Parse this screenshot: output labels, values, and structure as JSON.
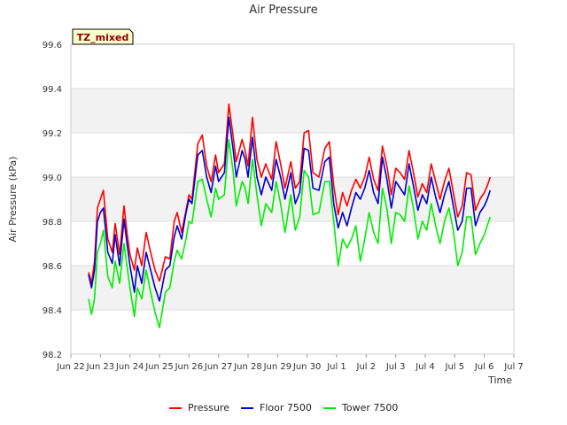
{
  "chart_data": {
    "type": "line",
    "title": "Air Pressure",
    "xlabel": "Time",
    "ylabel": "Air Pressure (kPa)",
    "badge": "TZ_mixed",
    "ylim": [
      98.2,
      99.6
    ],
    "yticks": [
      98.2,
      98.4,
      98.6,
      98.8,
      99.0,
      99.2,
      99.4,
      99.6
    ],
    "xlim_days": [
      0,
      15
    ],
    "xticks": [
      "Jun 22",
      "Jun 23",
      "Jun 24",
      "Jun 25",
      "Jun 26",
      "Jun 27",
      "Jun 28",
      "Jun 29",
      "Jun 30",
      "Jul 1",
      "Jul 2",
      "Jul 3",
      "Jul 4",
      "Jul 5",
      "Jul 6",
      "Jul 7"
    ],
    "x_start": "Jun 22",
    "grid": true,
    "legend_position": "bottom",
    "colors": {
      "Pressure": "#ff0000",
      "Floor 7500": "#0000cc",
      "Tower 7500": "#00ee00",
      "band": "#f2f2f2",
      "gridline": "#dddddd"
    },
    "series": [
      {
        "name": "Pressure",
        "x": [
          0.6,
          0.7,
          0.8,
          0.9,
          1.0,
          1.1,
          1.25,
          1.4,
          1.5,
          1.65,
          1.8,
          1.9,
          2.0,
          2.15,
          2.25,
          2.4,
          2.55,
          2.7,
          2.85,
          3.0,
          3.2,
          3.35,
          3.5,
          3.6,
          3.75,
          3.9,
          4.0,
          4.1,
          4.3,
          4.45,
          4.6,
          4.75,
          4.9,
          5.0,
          5.2,
          5.35,
          5.5,
          5.6,
          5.8,
          5.9,
          6.0,
          6.15,
          6.3,
          6.45,
          6.6,
          6.8,
          6.95,
          7.1,
          7.25,
          7.45,
          7.6,
          7.75,
          7.9,
          8.05,
          8.2,
          8.4,
          8.6,
          8.75,
          8.9,
          9.05,
          9.2,
          9.35,
          9.5,
          9.65,
          9.8,
          9.95,
          10.1,
          10.25,
          10.4,
          10.55,
          10.7,
          10.85,
          11.0,
          11.15,
          11.3,
          11.45,
          11.6,
          11.75,
          11.9,
          12.05,
          12.2,
          12.35,
          12.5,
          12.65,
          12.8,
          12.95,
          13.1,
          13.25,
          13.4,
          13.55,
          13.7,
          13.85,
          14.0,
          14.1,
          14.2
        ],
        "y": [
          98.57,
          98.52,
          98.62,
          98.86,
          98.9,
          98.94,
          98.72,
          98.66,
          98.79,
          98.65,
          98.87,
          98.75,
          98.65,
          98.58,
          98.68,
          98.6,
          98.75,
          98.66,
          98.58,
          98.53,
          98.64,
          98.63,
          98.8,
          98.84,
          98.75,
          98.85,
          98.92,
          98.9,
          99.15,
          99.19,
          99.05,
          98.98,
          99.1,
          99.02,
          99.06,
          99.33,
          99.18,
          99.07,
          99.17,
          99.12,
          99.05,
          99.27,
          99.08,
          99.0,
          99.06,
          98.99,
          99.16,
          99.06,
          98.95,
          99.07,
          98.95,
          98.98,
          99.2,
          99.21,
          99.02,
          99.0,
          99.13,
          99.16,
          98.96,
          98.83,
          98.93,
          98.87,
          98.94,
          98.99,
          98.95,
          99.0,
          99.09,
          98.99,
          98.94,
          99.14,
          99.05,
          98.92,
          99.04,
          99.02,
          98.99,
          99.12,
          99.02,
          98.91,
          98.97,
          98.93,
          99.06,
          98.98,
          98.9,
          98.98,
          99.04,
          98.93,
          98.82,
          98.87,
          99.02,
          99.01,
          98.85,
          98.9,
          98.93,
          98.96,
          99.0
        ]
      },
      {
        "name": "Floor 7500",
        "x": [
          0.6,
          0.7,
          0.8,
          0.9,
          1.0,
          1.1,
          1.25,
          1.4,
          1.5,
          1.65,
          1.8,
          1.9,
          2.0,
          2.15,
          2.25,
          2.4,
          2.55,
          2.7,
          2.85,
          3.0,
          3.2,
          3.35,
          3.5,
          3.6,
          3.75,
          3.9,
          4.0,
          4.1,
          4.3,
          4.45,
          4.6,
          4.75,
          4.9,
          5.0,
          5.2,
          5.35,
          5.5,
          5.6,
          5.8,
          5.9,
          6.0,
          6.15,
          6.3,
          6.45,
          6.6,
          6.8,
          6.95,
          7.1,
          7.25,
          7.45,
          7.6,
          7.75,
          7.9,
          8.05,
          8.2,
          8.4,
          8.6,
          8.75,
          8.9,
          9.05,
          9.2,
          9.35,
          9.5,
          9.65,
          9.8,
          9.95,
          10.1,
          10.25,
          10.4,
          10.55,
          10.7,
          10.85,
          11.0,
          11.15,
          11.3,
          11.45,
          11.6,
          11.75,
          11.9,
          12.05,
          12.2,
          12.35,
          12.5,
          12.65,
          12.8,
          12.95,
          13.1,
          13.25,
          13.4,
          13.55,
          13.7,
          13.85,
          14.0,
          14.1,
          14.2
        ],
        "y": [
          98.56,
          98.5,
          98.58,
          98.8,
          98.84,
          98.86,
          98.66,
          98.61,
          98.74,
          98.6,
          98.81,
          98.7,
          98.6,
          98.48,
          98.6,
          98.52,
          98.66,
          98.58,
          98.5,
          98.44,
          98.58,
          98.6,
          98.73,
          98.78,
          98.72,
          98.84,
          98.9,
          98.88,
          99.1,
          99.12,
          99.0,
          98.93,
          99.05,
          98.98,
          99.02,
          99.27,
          99.12,
          99.0,
          99.12,
          99.08,
          99.0,
          99.18,
          99.0,
          98.92,
          99.0,
          98.94,
          99.08,
          99.0,
          98.9,
          99.02,
          98.88,
          98.93,
          99.13,
          99.12,
          98.95,
          98.94,
          99.07,
          99.09,
          98.88,
          98.77,
          98.84,
          98.78,
          98.86,
          98.93,
          98.9,
          98.95,
          99.03,
          98.93,
          98.88,
          99.09,
          98.99,
          98.86,
          98.98,
          98.95,
          98.92,
          99.06,
          98.96,
          98.85,
          98.92,
          98.88,
          99.0,
          98.91,
          98.84,
          98.92,
          98.98,
          98.87,
          98.76,
          98.8,
          98.95,
          98.95,
          98.78,
          98.84,
          98.87,
          98.9,
          98.94
        ]
      },
      {
        "name": "Tower 7500",
        "x": [
          0.6,
          0.7,
          0.8,
          0.9,
          1.0,
          1.1,
          1.25,
          1.4,
          1.5,
          1.65,
          1.8,
          1.9,
          2.0,
          2.15,
          2.25,
          2.4,
          2.55,
          2.7,
          2.85,
          3.0,
          3.2,
          3.35,
          3.5,
          3.6,
          3.75,
          3.9,
          4.0,
          4.1,
          4.3,
          4.45,
          4.6,
          4.75,
          4.9,
          5.0,
          5.2,
          5.35,
          5.5,
          5.6,
          5.8,
          5.9,
          6.0,
          6.15,
          6.3,
          6.45,
          6.6,
          6.8,
          6.95,
          7.1,
          7.25,
          7.45,
          7.6,
          7.75,
          7.9,
          8.05,
          8.2,
          8.4,
          8.6,
          8.75,
          8.9,
          9.05,
          9.2,
          9.35,
          9.5,
          9.65,
          9.8,
          9.95,
          10.1,
          10.25,
          10.4,
          10.55,
          10.7,
          10.85,
          11.0,
          11.15,
          11.3,
          11.45,
          11.6,
          11.75,
          11.9,
          12.05,
          12.2,
          12.35,
          12.5,
          12.65,
          12.8,
          12.95,
          13.1,
          13.25,
          13.4,
          13.55,
          13.7,
          13.85,
          14.0,
          14.1,
          14.2
        ],
        "y": [
          98.45,
          98.38,
          98.45,
          98.66,
          98.7,
          98.76,
          98.55,
          98.5,
          98.62,
          98.52,
          98.7,
          98.6,
          98.5,
          98.37,
          98.5,
          98.45,
          98.58,
          98.48,
          98.39,
          98.32,
          98.48,
          98.5,
          98.62,
          98.67,
          98.63,
          98.72,
          98.8,
          98.79,
          98.98,
          98.99,
          98.9,
          98.82,
          98.95,
          98.9,
          98.92,
          99.17,
          99.02,
          98.87,
          98.98,
          98.95,
          98.88,
          99.08,
          98.92,
          98.78,
          98.88,
          98.84,
          98.98,
          98.88,
          98.75,
          98.92,
          98.76,
          98.82,
          99.03,
          99.0,
          98.83,
          98.84,
          98.98,
          98.98,
          98.8,
          98.6,
          98.72,
          98.68,
          98.72,
          98.78,
          98.62,
          98.72,
          98.84,
          98.75,
          98.7,
          98.95,
          98.86,
          98.7,
          98.84,
          98.83,
          98.8,
          98.96,
          98.86,
          98.72,
          98.8,
          98.76,
          98.88,
          98.78,
          98.7,
          98.8,
          98.86,
          98.76,
          98.6,
          98.66,
          98.82,
          98.82,
          98.65,
          98.7,
          98.74,
          98.78,
          98.82
        ]
      }
    ]
  }
}
